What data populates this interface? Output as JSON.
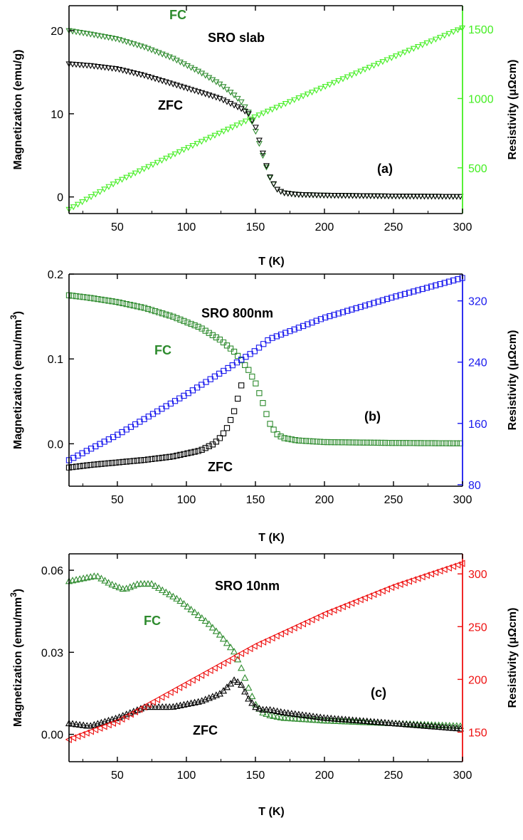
{
  "chart_data": [
    {
      "panel": "a",
      "type": "scatter",
      "annotations": {
        "sample": "SRO slab",
        "panel_label": "(a)",
        "fc": "FC",
        "zfc": "ZFC"
      },
      "xlabel": "T (K)",
      "ylabel_left": "Magnetization (emu/g)",
      "ylabel_right": "Resistivity (μΩcm)",
      "xlim": [
        15,
        300
      ],
      "ylim_left": [
        -2,
        23
      ],
      "ylim_right": [
        170,
        1670
      ],
      "xticks": [
        "50",
        "100",
        "150",
        "200",
        "250",
        "300"
      ],
      "yticks_left": [
        "0",
        "10",
        "20"
      ],
      "yticks_right": [
        "500",
        "1000",
        "1500"
      ],
      "colors": {
        "fc": "#2e8b2e",
        "zfc": "#000000",
        "rho": "#44ee22",
        "right_axis": "#44ee22"
      },
      "series": [
        {
          "x": [
            15,
            30,
            50,
            70,
            90,
            110,
            125,
            135,
            140,
            145,
            150,
            155,
            160,
            165,
            170,
            180,
            200,
            250,
            300
          ],
          "y": [
            20.0,
            19.6,
            19.0,
            18.0,
            16.7,
            15.0,
            13.5,
            12.2,
            11.4,
            10.2,
            8.0,
            5.2,
            2.5,
            1.0,
            0.5,
            0.3,
            0.2,
            0.1,
            0.05
          ]
        },
        {
          "x": [
            15,
            30,
            50,
            70,
            90,
            110,
            125,
            135,
            140,
            145,
            150,
            155,
            160,
            165,
            170,
            180,
            200,
            250,
            300
          ],
          "y": [
            16.0,
            15.8,
            15.4,
            14.6,
            13.6,
            12.6,
            11.8,
            11.0,
            10.6,
            10.0,
            8.5,
            5.5,
            2.6,
            1.0,
            0.5,
            0.3,
            0.2,
            0.1,
            0.05
          ]
        },
        {
          "x": [
            15,
            50,
            100,
            150,
            200,
            250,
            300
          ],
          "y": [
            200,
            400,
            640,
            870,
            1085,
            1300,
            1510
          ]
        }
      ]
    },
    {
      "panel": "b",
      "type": "scatter",
      "annotations": {
        "sample": "SRO 800nm",
        "panel_label": "(b)",
        "fc": "FC",
        "zfc": "ZFC"
      },
      "xlabel": "T (K)",
      "ylabel_left": "Magnetization (emu/mm",
      "ylabel_left_sup": "3",
      "ylabel_left_end": ")",
      "ylabel_right": "Resistivity (μΩcm)",
      "xlim": [
        15,
        300
      ],
      "ylim_left": [
        -0.05,
        0.2
      ],
      "ylim_right": [
        78,
        355
      ],
      "xticks": [
        "50",
        "100",
        "150",
        "200",
        "250",
        "300"
      ],
      "yticks_left": [
        "0.0",
        "0.1",
        "0.2"
      ],
      "yticks_right": [
        "80",
        "160",
        "240",
        "320"
      ],
      "colors": {
        "fc": "#2e8b2e",
        "zfc": "#000000",
        "rho": "#1a1aee",
        "right_axis": "#1a1aee"
      },
      "series": [
        {
          "x": [
            15,
            30,
            50,
            70,
            90,
            110,
            125,
            135,
            140,
            145,
            150,
            155,
            160,
            165,
            170,
            180,
            200,
            250,
            300
          ],
          "y": [
            0.175,
            0.172,
            0.167,
            0.16,
            0.15,
            0.137,
            0.122,
            0.108,
            0.098,
            0.087,
            0.072,
            0.05,
            0.025,
            0.012,
            0.007,
            0.004,
            0.002,
            0.001,
            0.0005
          ]
        },
        {
          "x": [
            15,
            30,
            50,
            70,
            90,
            110,
            120,
            125,
            130,
            135,
            140
          ],
          "y": [
            -0.028,
            -0.025,
            -0.022,
            -0.019,
            -0.015,
            -0.008,
            0.0,
            0.008,
            0.02,
            0.04,
            0.07
          ]
        },
        {
          "x": [
            15,
            50,
            100,
            130,
            150,
            160,
            200,
            250,
            300
          ],
          "y": [
            112,
            145,
            198,
            232,
            255,
            270,
            298,
            325,
            350
          ]
        }
      ]
    },
    {
      "panel": "c",
      "type": "scatter",
      "annotations": {
        "sample": "SRO 10nm",
        "panel_label": "(c)",
        "fc": "FC",
        "zfc": "ZFC"
      },
      "xlabel": "T (K)",
      "ylabel_left": "Magnetization (emu/mm",
      "ylabel_left_sup": "3",
      "ylabel_left_end": ")",
      "ylabel_right": "Resistivity (μΩcm)",
      "xlim": [
        15,
        300
      ],
      "ylim_left": [
        -0.01,
        0.066
      ],
      "ylim_right": [
        122,
        319
      ],
      "xticks": [
        "50",
        "100",
        "150",
        "200",
        "250",
        "300"
      ],
      "yticks_left": [
        "0.00",
        "0.03",
        "0.06"
      ],
      "yticks_right": [
        "150",
        "200",
        "250",
        "300"
      ],
      "colors": {
        "fc": "#2e8b2e",
        "zfc": "#000000",
        "rho": "#ee1111",
        "right_axis": "#ee1111"
      },
      "series": [
        {
          "x": [
            15,
            25,
            35,
            45,
            55,
            65,
            75,
            85,
            95,
            105,
            115,
            125,
            135,
            140,
            145,
            150,
            155,
            160,
            170,
            200,
            250,
            300
          ],
          "y": [
            0.056,
            0.057,
            0.058,
            0.055,
            0.053,
            0.055,
            0.055,
            0.052,
            0.049,
            0.045,
            0.041,
            0.036,
            0.03,
            0.024,
            0.017,
            0.011,
            0.008,
            0.007,
            0.006,
            0.005,
            0.004,
            0.003
          ]
        },
        {
          "x": [
            15,
            30,
            50,
            70,
            90,
            110,
            125,
            135,
            140,
            145,
            150,
            155,
            160,
            170,
            200,
            250,
            300
          ],
          "y": [
            0.004,
            0.003,
            0.006,
            0.01,
            0.01,
            0.012,
            0.015,
            0.02,
            0.018,
            0.013,
            0.01,
            0.009,
            0.009,
            0.008,
            0.006,
            0.004,
            0.002
          ]
        },
        {
          "x": [
            15,
            50,
            100,
            150,
            200,
            250,
            300
          ],
          "y": [
            143,
            160,
            196,
            232,
            262,
            288,
            310
          ]
        }
      ]
    }
  ]
}
